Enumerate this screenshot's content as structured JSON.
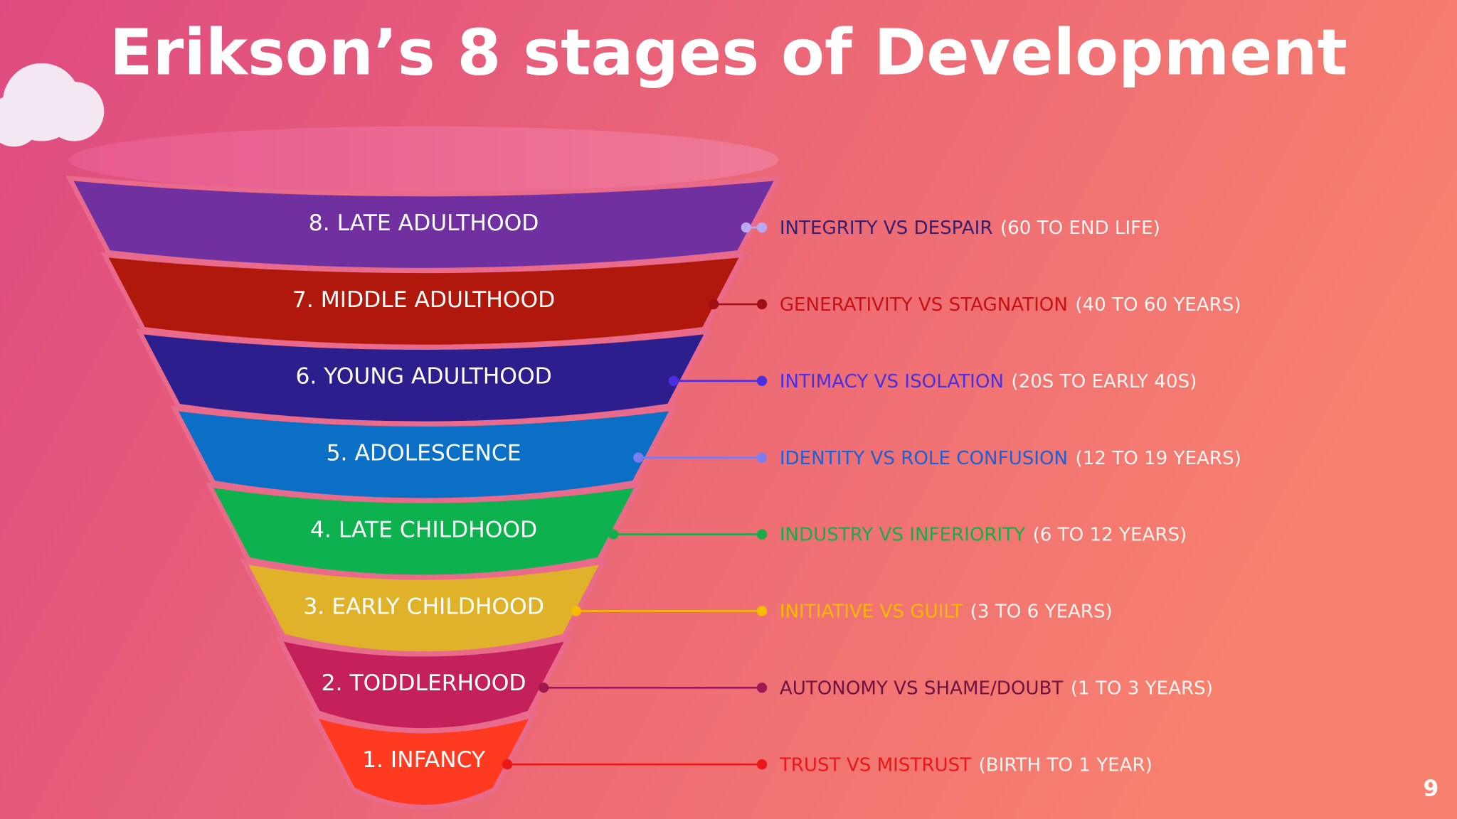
{
  "title": "Erikson’s 8 stages of Development",
  "stages": [
    {
      "label": "8. LATE ADULTHOOD",
      "conflict": "INTEGRITY  VS  DESPAIR",
      "age": "(60 TO END LIFE)"
    },
    {
      "label": "7. MIDDLE ADULTHOOD",
      "conflict": "GENERATIVITY  VS  STAGNATION",
      "age": "(40 TO 60 YEARS)"
    },
    {
      "label": "6. YOUNG ADULTHOOD",
      "conflict": "INTIMACY VS ISOLATION",
      "age": "(20S TO EARLY 40S)"
    },
    {
      "label": "5. ADOLESCENCE",
      "conflict": "IDENTITY VS ROLE CONFUSION",
      "age": "(12 TO 19 YEARS)"
    },
    {
      "label": "4. LATE CHILDHOOD",
      "conflict": "INDUSTRY VS INFERIORITY",
      "age": "(6 TO 12 YEARS)"
    },
    {
      "label": "3. EARLY CHILDHOOD",
      "conflict": "INITIATIVE VS GUILT",
      "age": "(3 TO 6 YEARS)"
    },
    {
      "label": "2. TODDLERHOOD",
      "conflict": "AUTONOMY VS SHAME/DOUBT",
      "age": "(1 TO 3 YEARS)"
    },
    {
      "label": "1. INFANCY",
      "conflict": "TRUST VS MISTRUST",
      "age": "(BIRTH TO 1 YEAR)"
    }
  ],
  "page_number": "9"
}
